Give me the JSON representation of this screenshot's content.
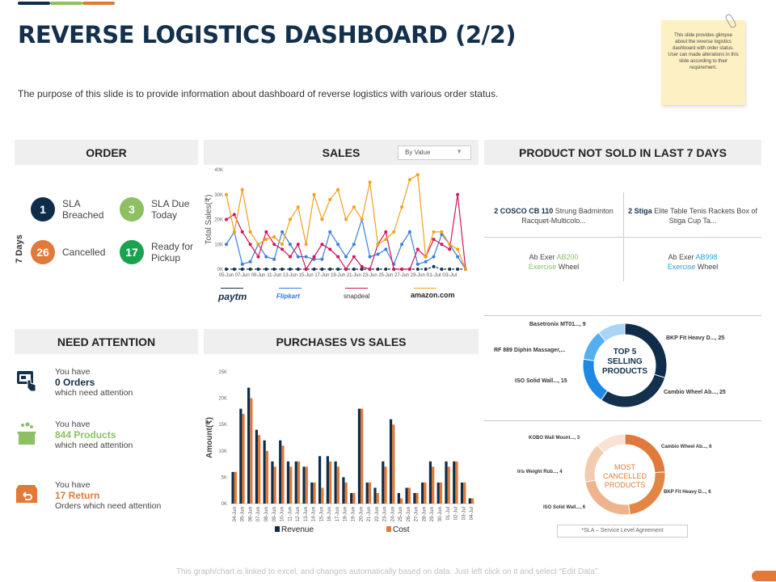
{
  "header": {
    "title": "REVERSE LOGISTICS DASHBOARD (2/2)",
    "subtitle": "The purpose of this slide is to provide information about dashboard of reverse logistics with various order status.",
    "accent_colors": [
      "#0f2d4a",
      "#8cc063",
      "#e0793a"
    ]
  },
  "sticky_note": {
    "text": "This slide provides glimpse about the reverse logistics dashboard with order status. User can made alterations in this slide according to their requirement.",
    "icon": "paperclip-icon"
  },
  "order": {
    "title": "ORDER",
    "period_label": "7 Days",
    "items": [
      {
        "value": "1",
        "label": "SLA Breached",
        "color": "#0f2d4a"
      },
      {
        "value": "3",
        "label": "SLA Due Today",
        "color": "#8cc063"
      },
      {
        "value": "26",
        "label": "Cancelled",
        "color": "#e0793a"
      },
      {
        "value": "17",
        "label": "Ready for Pickup",
        "color": "#1aa251"
      }
    ]
  },
  "sales": {
    "title": "SALES",
    "dropdown_value": "By Value"
  },
  "products_not_sold": {
    "title": "PRODUCT NOT SOLD IN LAST 7 DAYS",
    "items": [
      {
        "bold": "2 COSCO CB 110",
        "rest": " Strung Badminton Racquet-Multicolo..."
      },
      {
        "bold": "2 Stiga",
        "rest": " Elite Table Tenis Rackets Box of Stiga Cup Ta..."
      },
      {
        "pre": "Ab Exer ",
        "code": "AB200",
        "mid": "Exercise",
        "post": " Wheel",
        "color": "#8cc063"
      },
      {
        "pre": "Ab Exer ",
        "code": "AB998",
        "mid": "Exercise",
        "post": " Wheel",
        "color": "#2e9fd8"
      }
    ]
  },
  "need_attention": {
    "title": "NEED ATTENTION",
    "items": [
      {
        "line1": "You have",
        "highlight": "0 Orders",
        "line3": "which need attention",
        "color": "#13304d",
        "icon": "online-order-icon"
      },
      {
        "line1": "You have",
        "highlight": "844 Products",
        "line3": "which need attention",
        "color": "#8cc063",
        "icon": "open-box-icon"
      },
      {
        "line1": "You have",
        "highlight": "17 Return",
        "line3": "Orders which need attention",
        "color": "#e0793a",
        "icon": "return-box-icon"
      }
    ]
  },
  "purchases": {
    "title": "PURCHASES VS SALES"
  },
  "top_selling": {
    "center": "TOP 5 SELLING PRODUCTS"
  },
  "most_cancelled": {
    "center": "MOST CANCELLED PRODUCTS"
  },
  "sla_note": "*SLA – Service Level Agreement",
  "footer": "This graph/chart is linked to excel, and changes automatically based on data. Just left click on it and select “Edit Data”.",
  "chart_data": [
    {
      "type": "line",
      "ylabel": "Total Sales(₹)",
      "ylim": [
        0,
        40000
      ],
      "yticks": [
        "0K",
        "10K",
        "20K",
        "30K",
        "40K"
      ],
      "x": [
        "05-Jun",
        "06-Jun",
        "07-Jun",
        "08-Jun",
        "09-Jun",
        "10-Jun",
        "11-Jun",
        "12-Jun",
        "13-Jun",
        "14-Jun",
        "15-Jun",
        "16-Jun",
        "17-Jun",
        "18-Jun",
        "19-Jun",
        "20-Jun",
        "21-Jun",
        "22-Jun",
        "23-Jun",
        "24-Jun",
        "25-Jun",
        "26-Jun",
        "27-Jun",
        "28-Jun",
        "29-Jun",
        "30-Jun",
        "01-Jul",
        "02-Jul",
        "03-Jul",
        "04-Jul",
        "05-Jul"
      ],
      "xticks": [
        "05-Jun",
        "07-Jun",
        "09-Jun",
        "11-Jun",
        "13-Jun",
        "15-Jun",
        "17-Jun",
        "19-Jun",
        "21-Jun",
        "23-Jun",
        "25-Jun",
        "27-Jun",
        "29-Jun",
        "01-Jul",
        "03-Jul"
      ],
      "series": [
        {
          "name": "paytm",
          "color": "#13304d",
          "values": [
            0,
            0,
            0,
            0,
            0,
            0,
            0,
            0,
            0,
            0,
            0,
            0,
            0,
            0,
            0,
            0,
            0,
            0,
            0,
            0,
            0,
            0,
            0,
            0,
            0,
            0,
            1000,
            0,
            0,
            0,
            0
          ]
        },
        {
          "name": "Flipkart",
          "color": "#3a7fd5",
          "values": [
            10000,
            15000,
            2000,
            3000,
            10000,
            5000,
            4000,
            15000,
            10000,
            5000,
            5000,
            4000,
            4000,
            15000,
            10000,
            5000,
            10000,
            20000,
            5000,
            6000,
            8000,
            2000,
            10000,
            15000,
            2000,
            3000,
            5000,
            14000,
            10000,
            5000,
            0
          ]
        },
        {
          "name": "snapdeal",
          "color": "#d0185a",
          "values": [
            20000,
            22000,
            15000,
            10000,
            5000,
            15000,
            10000,
            8000,
            5000,
            10000,
            0,
            5000,
            10000,
            8000,
            5000,
            0,
            5000,
            1000,
            0,
            10000,
            15000,
            0,
            0,
            0,
            8000,
            5000,
            12000,
            10000,
            8000,
            30000,
            0
          ]
        },
        {
          "name": "amazon.com",
          "color": "#f0a020",
          "values": [
            30000,
            15000,
            32000,
            15000,
            10000,
            12000,
            13000,
            10000,
            20000,
            25000,
            10000,
            30000,
            20000,
            28000,
            32000,
            20000,
            25000,
            20000,
            35000,
            10000,
            12000,
            15000,
            25000,
            36000,
            38000,
            5000,
            15000,
            15000,
            10000,
            8000,
            0
          ]
        }
      ]
    },
    {
      "type": "bar",
      "ylabel": "Amount(₹)",
      "ylim": [
        0,
        25000
      ],
      "yticks": [
        "0K",
        "5K",
        "10K",
        "15K",
        "20K",
        "25K"
      ],
      "categories": [
        "04-Jun",
        "05-Jun",
        "06-Jun",
        "07-Jun",
        "08-Jun",
        "09-Jun",
        "10-Jun",
        "11-Jun",
        "12-Jun",
        "13-Jun",
        "14-Jun",
        "15-Jun",
        "16-Jun",
        "17-Jun",
        "18-Jun",
        "19-Jun",
        "20-Jun",
        "21-Jun",
        "22-Jun",
        "23-Jun",
        "24-Jun",
        "25-Jun",
        "26-Jun",
        "27-Jun",
        "28-Jun",
        "29-Jun",
        "30-Jun",
        "01-Jul",
        "02-Jul",
        "03-Jul",
        "04-Jul"
      ],
      "series": [
        {
          "name": "Revenue",
          "color": "#0f2d4a",
          "values": [
            6000,
            18000,
            22000,
            14000,
            12000,
            8000,
            12000,
            8000,
            8000,
            7000,
            4000,
            9000,
            9000,
            8000,
            5000,
            2000,
            18000,
            4000,
            3000,
            8000,
            16000,
            2000,
            3000,
            2000,
            4000,
            8000,
            4000,
            8000,
            8000,
            4000,
            1000
          ]
        },
        {
          "name": "Cost",
          "color": "#e0793a",
          "values": [
            6000,
            17000,
            20000,
            13000,
            10000,
            7000,
            11000,
            7000,
            8000,
            7000,
            4000,
            3000,
            8000,
            7000,
            4000,
            2000,
            18000,
            4000,
            2000,
            7000,
            15000,
            1000,
            3000,
            2000,
            4000,
            7000,
            4000,
            7000,
            8000,
            4000,
            1000
          ]
        }
      ],
      "legend": "bottom"
    },
    {
      "type": "pie",
      "title": "TOP 5 SELLING PRODUCTS",
      "labels": [
        "BKP Fit Heavy D..., 25",
        "Cambio Wheel Ab..., 25",
        "ISO Solid Wall..., 15",
        "RF 889 Diphin Massager,...",
        "Basetronix MT01..., 9"
      ],
      "values": [
        25,
        25,
        15,
        10,
        9
      ],
      "colors": [
        "#0f2d4a",
        "#13304d",
        "#1e88e5",
        "#55aef0",
        "#a9d4f5"
      ]
    },
    {
      "type": "pie",
      "title": "MOST CANCELLED PRODUCTS",
      "labels": [
        "Cambio Wheel Ab..., 6",
        "BKP Fit Heavy D..., 6",
        "ISO Solid Wall..., 6",
        "Iris Weight Rub..., 4",
        "KOBO Wall Mount..., 3"
      ],
      "values": [
        6,
        6,
        6,
        4,
        3
      ],
      "colors": [
        "#e0793a",
        "#e38545",
        "#eeb48d",
        "#f2cbb0",
        "#f8e2d4"
      ]
    }
  ]
}
